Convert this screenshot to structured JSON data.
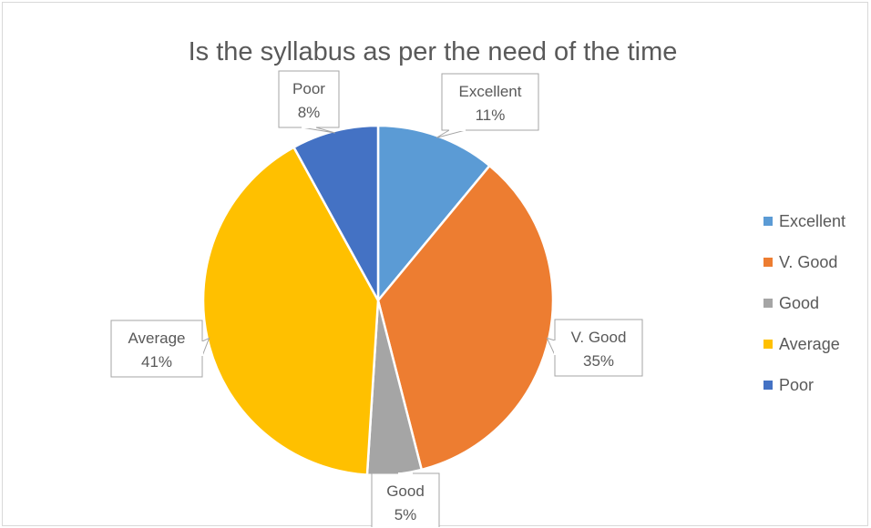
{
  "chart_data": {
    "type": "pie",
    "title": "Is the syllabus as per the need of the time",
    "slices": [
      {
        "label": "Excellent",
        "value": 11,
        "value_label": "11%",
        "color": "#5B9BD5"
      },
      {
        "label": "V. Good",
        "value": 35,
        "value_label": "35%",
        "color": "#ED7D31"
      },
      {
        "label": "Good",
        "value": 5,
        "value_label": "5%",
        "color": "#A5A5A5"
      },
      {
        "label": "Average",
        "value": 41,
        "value_label": "41%",
        "color": "#FFC000"
      },
      {
        "label": "Poor",
        "value": 8,
        "value_label": "8%",
        "color": "#4472C4"
      }
    ],
    "legend": {
      "position": "right",
      "entries": [
        "Excellent",
        "V. Good",
        "Good",
        "Average",
        "Poor"
      ]
    },
    "start_angle": "12 o'clock",
    "direction": "clockwise",
    "data_labels": "callout boxes with category name and percent"
  }
}
